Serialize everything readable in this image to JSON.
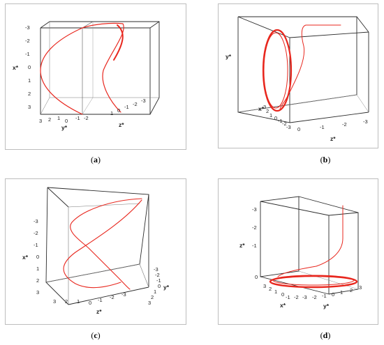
{
  "colors": {
    "curve": "#e8271e",
    "frame": "#bdbdbd",
    "edge": "#2b2b2b"
  },
  "panels": [
    {
      "caption": "a",
      "labels": {
        "x_axis": "x*",
        "y_axis": "y*",
        "z_axis": "z*",
        "x_ticks": [
          "-3",
          "-2",
          "-1",
          "0",
          "1",
          "2",
          "3"
        ],
        "y_ticks": [
          "3",
          "2",
          "1",
          "0",
          "-1",
          "-2"
        ],
        "z_ticks": [
          "1",
          "0",
          "-1",
          "-2",
          "-3"
        ]
      }
    },
    {
      "caption": "b",
      "labels": {
        "x_axis": "x*",
        "y_axis": "y*",
        "z_axis": "z*",
        "x_ticks": [
          "3",
          "2",
          "1",
          "0",
          "-1",
          "-2",
          "-3"
        ],
        "z_ticks": [
          "0",
          "-1",
          "-2",
          "-3"
        ]
      }
    },
    {
      "caption": "c",
      "labels": {
        "x_axis": "x*",
        "y_axis": "y*",
        "z_axis": "z*",
        "x_ticks": [
          "-3",
          "-2",
          "-1",
          "0",
          "1",
          "2",
          "3"
        ],
        "z_ticks": [
          "3",
          "2",
          "1",
          "0",
          "-1",
          "-2",
          "-3"
        ],
        "y_ticks": [
          "-3",
          "-2",
          "-1",
          "0",
          "1",
          "2",
          "3"
        ]
      }
    },
    {
      "caption": "d",
      "labels": {
        "x_axis": "x*",
        "y_axis": "y*",
        "z_axis": "z*",
        "z_ticks": [
          "-3",
          "-2",
          "-1",
          "0"
        ],
        "x_ticks": [
          "3",
          "2",
          "1",
          "0",
          "-1",
          "-2",
          "-3"
        ],
        "y_ticks": [
          "-2",
          "-1",
          "0",
          "1",
          "2",
          "3"
        ]
      }
    }
  ]
}
